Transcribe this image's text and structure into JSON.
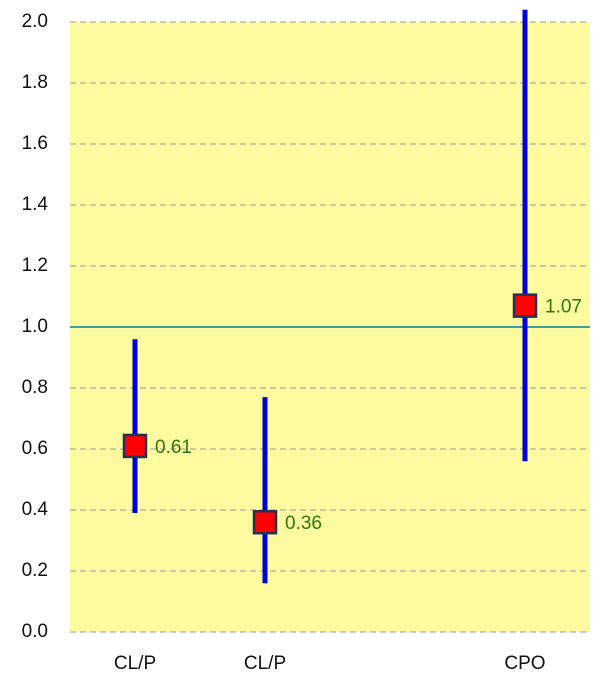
{
  "chart_data": {
    "type": "interval",
    "categories": [
      "CL/P",
      "CL/P",
      null,
      "CPO"
    ],
    "values": [
      0.61,
      0.36,
      null,
      1.07
    ],
    "lower": [
      0.39,
      0.16,
      null,
      0.56
    ],
    "upper": [
      0.96,
      0.77,
      null,
      2.04
    ],
    "reference_line": 1,
    "color": "#0000dd",
    "marker_color": "#ff0000",
    "label_color": "#2a7a10",
    "reference_color": "#3aa0a0",
    "background": "#fdfaa0",
    "ylim": [
      0,
      2
    ],
    "yticks": [
      {
        "value": 0,
        "label": "0.0"
      },
      0.2,
      0.4,
      0.6,
      0.8,
      {
        "value": 1,
        "label": "1.0"
      },
      1.2,
      1.4,
      1.6,
      1.8,
      {
        "value": 2,
        "label": "2.0"
      }
    ],
    "grid": true
  }
}
